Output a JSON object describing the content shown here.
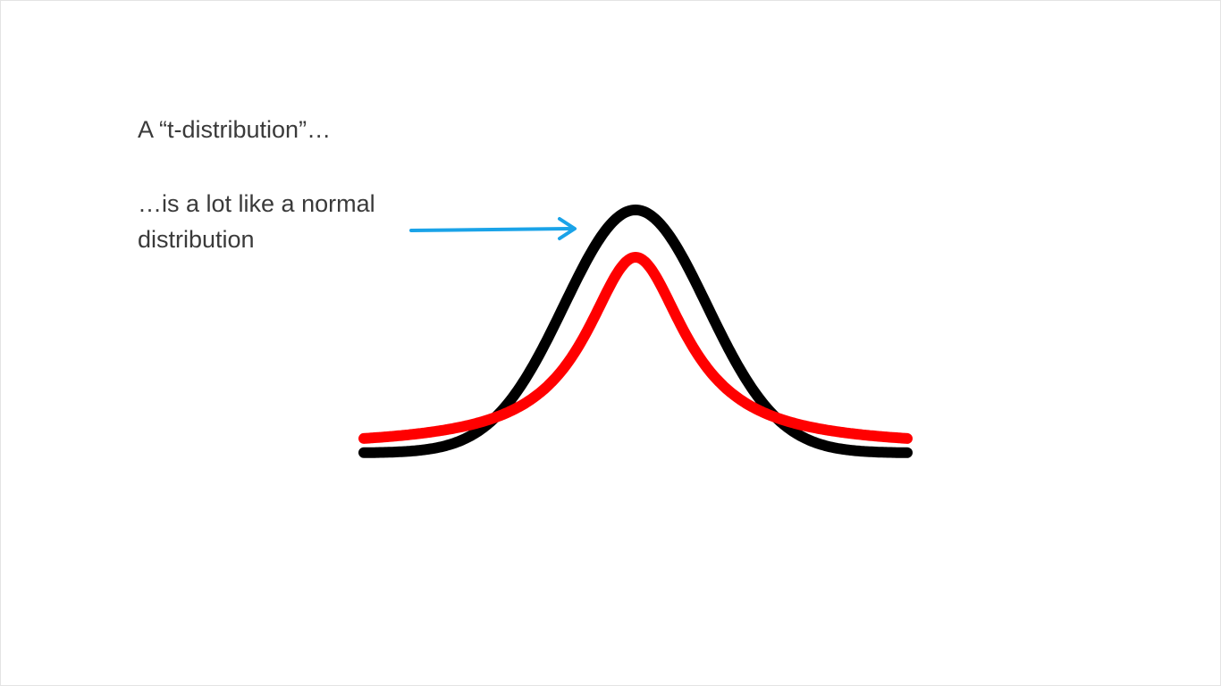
{
  "slide": {
    "heading": "A “t-distribution”…",
    "caption": "…is a lot like a normal distribution"
  },
  "colors": {
    "normal_curve": "#000000",
    "t_curve": "#ff0000",
    "arrow": "#1aa3e8",
    "text": "#3a3a3a"
  }
}
